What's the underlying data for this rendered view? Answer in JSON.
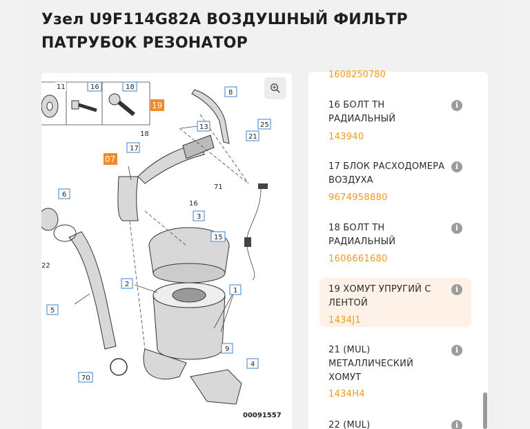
{
  "page": {
    "title": "Узел U9F114G82A ВОЗДУШНЫЙ ФИЛЬТР ПАТРУБОК РЕЗОНАТОР"
  },
  "diagram": {
    "code": "00091557",
    "top_legend": [
      "11",
      "16",
      "18"
    ],
    "callouts": {
      "c19": "19",
      "c07": "07",
      "c8": "8",
      "c13": "13",
      "c25": "25",
      "c18": "18",
      "c17": "17",
      "c21": "21",
      "c71": "71",
      "c6": "6",
      "c16b": "16",
      "c3": "3",
      "c15": "15",
      "c2": "2",
      "c1": "1",
      "c22": "22",
      "c5": "5",
      "c9": "9",
      "c4": "4",
      "c70": "70"
    }
  },
  "parts": {
    "first_number": "1608250780",
    "items": [
      {
        "name": "16 БОЛТ ТН РАДИАЛЬНЫЙ",
        "number": "143940"
      },
      {
        "name": "17 БЛОК РАСХОДОМЕРА ВОЗДУХА",
        "number": "9674958880"
      },
      {
        "name": "18 БОЛТ ТН РАДИАЛЬНЫЙ",
        "number": "1606661680"
      },
      {
        "name": "19 ХОМУТ УПРУГИЙ С ЛЕНТОЙ",
        "number": "1434J1"
      },
      {
        "name": "21 (MUL) МЕТАЛЛИЧЕСКИЙ ХОМУТ",
        "number": "1434H4"
      },
      {
        "name": "22 (MUL)",
        "number": ""
      }
    ],
    "info_glyph": "i"
  },
  "colors": {
    "accent": "#f39a1e",
    "highlight_bg": "#fdf1e8",
    "callout_border": "#5a95d8"
  }
}
